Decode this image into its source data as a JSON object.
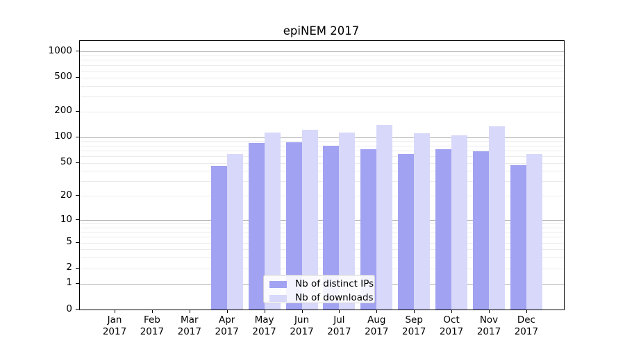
{
  "chart_data": {
    "type": "bar",
    "title": "epiNEM 2017",
    "categories": [
      "Jan",
      "Feb",
      "Mar",
      "Apr",
      "May",
      "Jun",
      "Jul",
      "Aug",
      "Sep",
      "Oct",
      "Nov",
      "Dec"
    ],
    "year": "2017",
    "series": [
      {
        "name": "Nb of distinct IPs",
        "color": "#a2a2f2",
        "values": [
          0,
          0,
          0,
          46,
          86,
          87,
          79,
          73,
          63,
          72,
          69,
          47
        ]
      },
      {
        "name": "Nb of downloads",
        "color": "#d8d8fa",
        "values": [
          0,
          0,
          0,
          63,
          114,
          122,
          114,
          140,
          112,
          105,
          135,
          64
        ]
      }
    ],
    "y_ticks": [
      0,
      1,
      2,
      5,
      10,
      20,
      50,
      100,
      200,
      500,
      1000
    ],
    "y_scale": "log1p",
    "ylim": [
      0,
      1200
    ],
    "xlabel": "",
    "ylabel": "",
    "grid": "horizontal",
    "legend_position": "lower-center-inside",
    "colors": {
      "grid_major": "#b3b3b3",
      "grid_minor": "#ebebeb",
      "axis": "#000000",
      "legend_border": "#d2d2d2",
      "background": "#ffffff"
    }
  }
}
